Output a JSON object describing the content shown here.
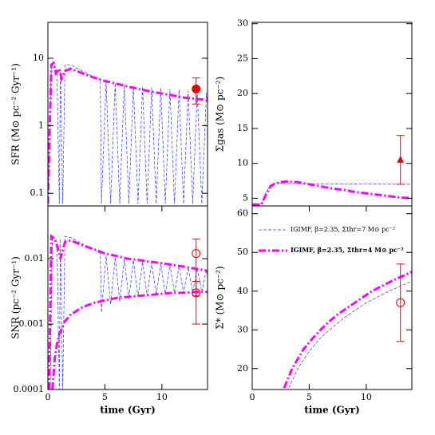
{
  "chart_data": [
    {
      "type": "line",
      "ylabel": "SFR (M⊙ pc⁻² Gyr⁻¹)",
      "ylog": true,
      "xlim": [
        0,
        14
      ],
      "ylim": [
        0.065,
        34
      ],
      "yticks": [
        0.1,
        1,
        10
      ],
      "series": [
        {
          "color": "#3333ff",
          "dash": "4 2",
          "width": 0.7,
          "x": [
            0,
            0.3,
            0.5,
            0.8,
            1.0,
            1.1,
            1.3,
            1.5,
            2,
            3,
            4,
            4.6,
            4.7,
            5.1,
            5.5,
            5.9,
            6.3,
            6.7,
            7.1,
            7.5,
            7.9,
            8.3,
            8.7,
            9.1,
            9.5,
            9.9,
            10.3,
            10.7,
            11.1,
            11.5,
            11.9,
            12.3,
            12.7,
            13.1,
            13.5,
            13.9,
            14
          ],
          "values": [
            0.07,
            8,
            8.5,
            6,
            0.07,
            7,
            0.07,
            8,
            8,
            6.5,
            5.3,
            4.8,
            0.07,
            4.5,
            0.07,
            4.3,
            0.07,
            4.1,
            0.07,
            3.9,
            0.07,
            3.8,
            0.07,
            3.7,
            0.07,
            3.6,
            0.07,
            3.5,
            0.07,
            3.4,
            0.07,
            3.3,
            0.07,
            3.2,
            0.07,
            3.1,
            2.0
          ]
        },
        {
          "color": "#ff00ff",
          "dash": "9 3 2 3",
          "width": 3,
          "x": [
            0,
            0.3,
            0.5,
            0.7,
            1,
            1.2,
            1.5,
            2,
            3,
            4,
            5,
            6,
            7,
            8,
            9,
            10,
            11,
            12,
            13,
            14
          ],
          "values": [
            0.07,
            8,
            8.5,
            6,
            7,
            5,
            6.5,
            7,
            6,
            5.2,
            4.6,
            4.2,
            3.8,
            3.5,
            3.2,
            3.0,
            2.8,
            2.6,
            2.5,
            2.4
          ]
        }
      ],
      "observations": [
        {
          "x": 13,
          "y": 3.5,
          "low": 2.1,
          "high": 5.1,
          "marker": "filled-circle",
          "color": "#ee0000"
        }
      ]
    },
    {
      "type": "line",
      "ylabel": "Σgas (M⊙ pc⁻²)",
      "ylog": false,
      "xlim": [
        0,
        14
      ],
      "ylim": [
        3.9,
        30.2
      ],
      "yticks": [
        5,
        10,
        15,
        20,
        25,
        30
      ],
      "series": [
        {
          "color": "#3333ff",
          "dash": "4 2",
          "width": 0.7,
          "x": [
            0,
            0.8,
            1.2,
            1.6,
            2,
            3,
            14
          ],
          "values": [
            4.1,
            4.1,
            5.8,
            6.9,
            7.2,
            7.1,
            7.0
          ]
        },
        {
          "color": "#ff00ff",
          "dash": "9 3 2 3",
          "width": 3,
          "x": [
            0,
            0.8,
            1.2,
            1.6,
            2,
            2.5,
            3,
            4,
            5,
            6,
            7,
            8,
            9,
            10,
            11,
            12,
            13,
            14
          ],
          "values": [
            4.1,
            4.1,
            5.5,
            6.7,
            7.1,
            7.3,
            7.4,
            7.3,
            7.0,
            6.7,
            6.4,
            6.2,
            5.9,
            5.7,
            5.5,
            5.3,
            5.1,
            5.0
          ]
        }
      ],
      "observations": [
        {
          "x": 13,
          "y": 10.5,
          "low": 7,
          "high": 14,
          "marker": "filled-triangle",
          "color": "#ee0000"
        }
      ]
    },
    {
      "type": "line",
      "ylabel": "SNR (pc⁻² Gyr⁻¹)",
      "xlabel": "time (Gyr)",
      "ylog": true,
      "xlim": [
        0,
        14
      ],
      "xticks": [
        0,
        5,
        10
      ],
      "ylim": [
        0.0001,
        0.064
      ],
      "yticks": [
        0.0001,
        0.001,
        0.01
      ],
      "series": [
        {
          "color": "#3333ff",
          "dash": "4 2",
          "width": 0.7,
          "x": [
            0.2,
            0.4,
            0.8,
            1.0,
            1.1,
            1.3,
            1.5,
            2,
            3,
            4,
            4.6,
            4.7,
            5.1,
            5.5,
            5.9,
            6.3,
            6.7,
            7.1,
            7.5,
            7.9,
            8.3,
            8.7,
            9.1,
            9.5,
            9.9,
            10.3,
            10.7,
            11.1,
            11.5,
            11.9,
            12.3,
            12.7,
            13.1,
            13.5,
            13.9,
            14
          ],
          "values": [
            0.0001,
            0.022,
            0.018,
            0.0001,
            0.02,
            0.0001,
            0.022,
            0.021,
            0.017,
            0.014,
            0.012,
            0.0015,
            0.011,
            0.002,
            0.0105,
            0.0022,
            0.01,
            0.0024,
            0.0095,
            0.0026,
            0.009,
            0.0027,
            0.0087,
            0.0028,
            0.0084,
            0.0029,
            0.008,
            0.003,
            0.0077,
            0.003,
            0.0074,
            0.0031,
            0.0071,
            0.0031,
            0.0068,
            0.005
          ]
        },
        {
          "color": "#ff00ff",
          "dash": "9 3 2 3",
          "width": 3,
          "x": [
            0.1,
            0.3,
            0.6,
            0.9,
            1.1,
            1.5,
            2,
            3,
            4,
            5,
            6,
            7,
            8,
            9,
            10,
            11,
            12,
            13,
            14
          ],
          "values": [
            0.0001,
            0.022,
            0.02,
            0.014,
            0.01,
            0.018,
            0.019,
            0.016,
            0.014,
            0.012,
            0.011,
            0.01,
            0.0095,
            0.009,
            0.0085,
            0.008,
            0.0075,
            0.007,
            0.0065
          ]
        },
        {
          "color": "#ff00ff",
          "dash": "9 3 2 3",
          "width": 3,
          "x": [
            0.4,
            0.6,
            0.8,
            1,
            1.5,
            2,
            3,
            4,
            5,
            6,
            7,
            8,
            9,
            10,
            11,
            12,
            13,
            14
          ],
          "values": [
            0.0001,
            0.0003,
            0.0005,
            0.0007,
            0.0011,
            0.0014,
            0.0018,
            0.0021,
            0.0023,
            0.0025,
            0.0026,
            0.0027,
            0.0028,
            0.0029,
            0.003,
            0.003,
            0.0031,
            0.0031
          ]
        }
      ],
      "observations": [
        {
          "x": 13,
          "y": 0.012,
          "low": 0.001,
          "high": 0.02,
          "marker": "open-circle",
          "color": "#ee0000"
        },
        {
          "x": 13,
          "y": 0.003,
          "low": 0.0027,
          "high": 0.0045,
          "marker": "open-circle",
          "color": "#ee0000"
        }
      ]
    },
    {
      "type": "line",
      "ylabel": "Σ* (M⊙ pc⁻²)",
      "xlabel": "time (Gyr)",
      "ylog": false,
      "xlim": [
        0,
        14
      ],
      "xticks": [
        0,
        5,
        10
      ],
      "ylim": [
        14.6,
        62
      ],
      "yticks": [
        20,
        30,
        40,
        50,
        60
      ],
      "legend": "upper-right",
      "series": [
        {
          "name": "IGIMF, β=2.35, Σthr=7 M⊙ pc⁻²",
          "color": "#3333ff",
          "dash": "4 2",
          "width": 0.7,
          "x": [
            3.2,
            4,
            5,
            6,
            7,
            8,
            9,
            10,
            11,
            12,
            13,
            14
          ],
          "values": [
            15,
            20,
            24.5,
            28,
            30.5,
            33,
            35,
            37,
            38.5,
            40,
            41.3,
            42.5
          ]
        },
        {
          "name": "IGIMF, β=2.35, Σthr=4 M⊙ pc⁻²",
          "color": "#ff00ff",
          "dash": "9 3 2 3",
          "width": 3,
          "x": [
            2.8,
            3.5,
            4.5,
            5.5,
            6.5,
            7.5,
            8.5,
            9.5,
            10.5,
            11.5,
            12.5,
            13.5,
            14
          ],
          "values": [
            15,
            20,
            25,
            28.5,
            31.5,
            34,
            36,
            38,
            40,
            41.5,
            43,
            44.3,
            45
          ]
        }
      ],
      "observations": [
        {
          "x": 13,
          "y": 37,
          "low": 27,
          "high": 47,
          "marker": "open-circle",
          "color": "#ee0000"
        }
      ]
    }
  ]
}
